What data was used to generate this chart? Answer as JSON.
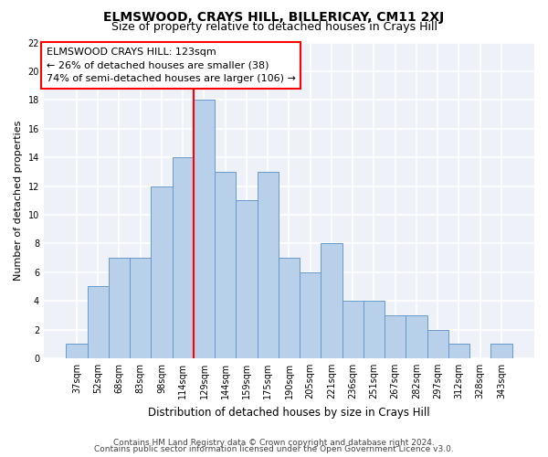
{
  "title": "ELMSWOOD, CRAYS HILL, BILLERICAY, CM11 2XJ",
  "subtitle": "Size of property relative to detached houses in Crays Hill",
  "xlabel": "Distribution of detached houses by size in Crays Hill",
  "ylabel": "Number of detached properties",
  "footer_line1": "Contains HM Land Registry data © Crown copyright and database right 2024.",
  "footer_line2": "Contains public sector information licensed under the Open Government Licence v3.0.",
  "bar_labels": [
    "37sqm",
    "52sqm",
    "68sqm",
    "83sqm",
    "98sqm",
    "114sqm",
    "129sqm",
    "144sqm",
    "159sqm",
    "175sqm",
    "190sqm",
    "205sqm",
    "221sqm",
    "236sqm",
    "251sqm",
    "267sqm",
    "282sqm",
    "297sqm",
    "312sqm",
    "328sqm",
    "343sqm"
  ],
  "bar_heights": [
    1,
    5,
    7,
    7,
    12,
    14,
    18,
    13,
    11,
    13,
    7,
    6,
    8,
    4,
    4,
    3,
    3,
    2,
    1,
    0,
    1
  ],
  "bar_color": "#b8d0ea",
  "bar_edgecolor": "#6699cc",
  "red_line_x": 5.5,
  "annotation_line1": "ELMSWOOD CRAYS HILL: 123sqm",
  "annotation_line2": "← 26% of detached houses are smaller (38)",
  "annotation_line3": "74% of semi-detached houses are larger (106) →",
  "ylim": [
    0,
    22
  ],
  "yticks": [
    0,
    2,
    4,
    6,
    8,
    10,
    12,
    14,
    16,
    18,
    20,
    22
  ],
  "bg_color": "#eef2f8",
  "grid_color": "#ffffff",
  "title_fontsize": 10,
  "subtitle_fontsize": 9,
  "annotation_fontsize": 8,
  "ylabel_fontsize": 8,
  "xlabel_fontsize": 8.5,
  "tick_fontsize": 7,
  "footer_fontsize": 6.5
}
